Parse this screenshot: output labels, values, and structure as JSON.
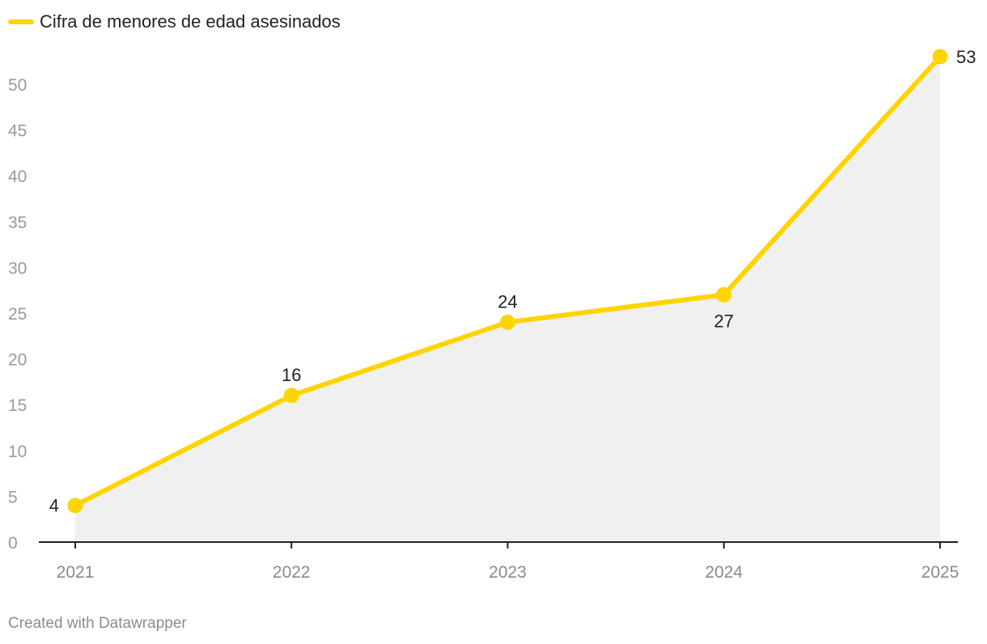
{
  "colors": {
    "line": "#ffd400",
    "area": "#f0f0f0",
    "axis": "#222222"
  },
  "chart_data": {
    "type": "line",
    "title": "",
    "xlabel": "",
    "ylabel": "",
    "legend_position": "top-left",
    "legend": [
      "Cifra de menores de edad asesinados"
    ],
    "categories": [
      "2021",
      "2022",
      "2023",
      "2024",
      "2025"
    ],
    "series": [
      {
        "name": "Cifra de menores de edad asesinados",
        "values": [
          4,
          16,
          24,
          27,
          53
        ]
      }
    ],
    "ylim": [
      0,
      53
    ],
    "yticks": [
      0,
      5,
      10,
      15,
      20,
      25,
      30,
      35,
      40,
      45,
      50
    ],
    "data_labels": [
      "4",
      "16",
      "24",
      "27",
      "53"
    ],
    "grid": false,
    "area_fill": true
  },
  "footer": {
    "credit": "Created with Datawrapper"
  }
}
